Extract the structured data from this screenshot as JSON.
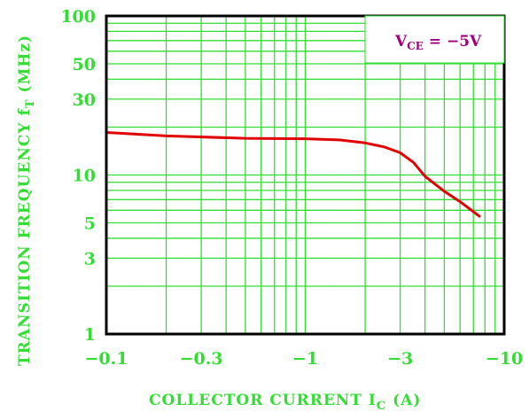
{
  "chart_data": {
    "type": "line",
    "xscale": "log",
    "yscale": "log",
    "xlim": [
      -0.1,
      -10
    ],
    "ylim": [
      1,
      100
    ],
    "xlabel": {
      "main": "COLLECTOR CURRENT I",
      "sub": "C",
      "unit": " (A)"
    },
    "ylabel": {
      "main": "TRANSITION FREQUENCY f",
      "sub": "T",
      "unit": " (MHz)"
    },
    "xticks": [
      {
        "value": -0.1,
        "label": "−0.1"
      },
      {
        "value": -0.3,
        "label": "−0.3"
      },
      {
        "value": -1,
        "label": "−1"
      },
      {
        "value": -3,
        "label": "−3"
      },
      {
        "value": -10,
        "label": "−10"
      }
    ],
    "yticks": [
      {
        "value": 1,
        "label": "1"
      },
      {
        "value": 3,
        "label": "3"
      },
      {
        "value": 5,
        "label": "5"
      },
      {
        "value": 10,
        "label": "10"
      },
      {
        "value": 30,
        "label": "30"
      },
      {
        "value": 50,
        "label": "50"
      },
      {
        "value": 100,
        "label": "100"
      }
    ],
    "annotation": {
      "main": "V",
      "sub": "CE",
      "value": " = −5V"
    },
    "series": [
      {
        "color": "#e00000",
        "x": [
          -0.1,
          -0.2,
          -0.5,
          -1.0,
          -1.5,
          -2.0,
          -2.5,
          -3.0,
          -3.5,
          -4.0,
          -5.0,
          -6.0,
          -7.5
        ],
        "y": [
          18.5,
          17.6,
          17.0,
          16.9,
          16.6,
          15.9,
          15.0,
          13.8,
          12.0,
          9.8,
          7.9,
          6.8,
          5.5
        ]
      }
    ],
    "grid": true,
    "colors": {
      "grid": "#33dd33",
      "frame": "#000000",
      "text": "#33dd33",
      "annotation": "#a0007a"
    }
  }
}
